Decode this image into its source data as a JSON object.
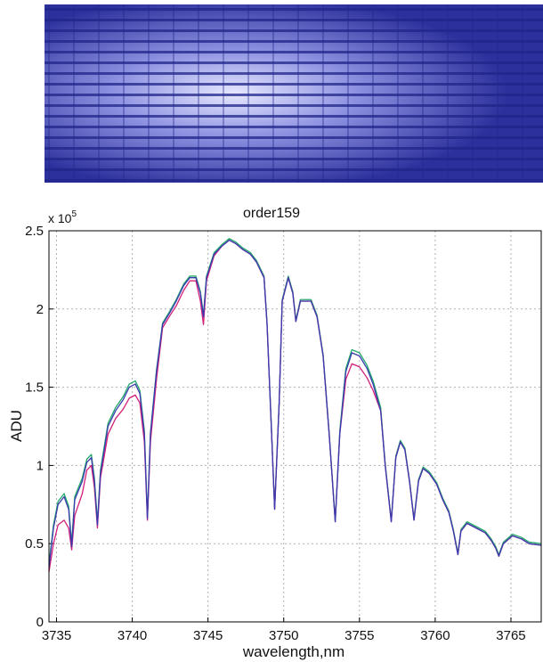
{
  "chart_data": {
    "type": "line",
    "title": "order159",
    "xlabel": "wavelength,nm",
    "ylabel": "ADU",
    "y_multiplier": {
      "base": "x 10",
      "exponent": "5"
    },
    "x": [
      3734.5,
      3734.8,
      3735.1,
      3735.5,
      3735.8,
      3736.0,
      3736.2,
      3736.7,
      3737.0,
      3737.3,
      3737.5,
      3737.7,
      3737.9,
      3738.4,
      3738.9,
      3739.4,
      3739.8,
      3740.2,
      3740.5,
      3740.8,
      3741.0,
      3741.2,
      3741.6,
      3742.0,
      3742.5,
      3742.9,
      3743.4,
      3743.8,
      3744.2,
      3744.5,
      3744.7,
      3744.9,
      3745.4,
      3745.9,
      3746.4,
      3746.8,
      3747.3,
      3747.8,
      3748.2,
      3748.7,
      3748.9,
      3749.2,
      3749.4,
      3749.7,
      3749.9,
      3750.3,
      3750.6,
      3750.8,
      3751.1,
      3751.4,
      3751.8,
      3752.2,
      3752.6,
      3753.0,
      3753.4,
      3753.7,
      3754.1,
      3754.5,
      3755.0,
      3755.5,
      3755.9,
      3756.4,
      3756.7,
      3757.1,
      3757.4,
      3757.7,
      3758.0,
      3758.3,
      3758.6,
      3758.9,
      3759.2,
      3759.6,
      3760.1,
      3760.5,
      3760.9,
      3761.2,
      3761.5,
      3761.7,
      3762.1,
      3762.7,
      3763.3,
      3763.7,
      3764.0,
      3764.2,
      3764.5,
      3765.1,
      3765.7,
      3766.2,
      3767.0
    ],
    "series": [
      {
        "color": "#22a86a",
        "values": [
          0.37,
          0.62,
          0.77,
          0.82,
          0.74,
          0.5,
          0.8,
          0.92,
          1.04,
          1.07,
          0.92,
          0.64,
          0.97,
          1.27,
          1.37,
          1.44,
          1.52,
          1.54,
          1.48,
          1.22,
          0.67,
          1.21,
          1.61,
          1.91,
          1.99,
          2.06,
          2.16,
          2.21,
          2.21,
          2.11,
          1.96,
          2.21,
          2.36,
          2.41,
          2.45,
          2.43,
          2.39,
          2.36,
          2.31,
          2.21,
          1.91,
          1.21,
          0.73,
          1.41,
          2.06,
          2.21,
          2.11,
          1.93,
          2.06,
          2.06,
          2.06,
          1.96,
          1.71,
          1.21,
          0.65,
          1.22,
          1.62,
          1.74,
          1.72,
          1.64,
          1.54,
          1.37,
          1.01,
          0.65,
          1.06,
          1.16,
          1.11,
          0.91,
          0.66,
          0.91,
          0.99,
          0.96,
          0.89,
          0.79,
          0.71,
          0.59,
          0.44,
          0.59,
          0.64,
          0.61,
          0.58,
          0.53,
          0.48,
          0.43,
          0.51,
          0.56,
          0.54,
          0.51,
          0.5
        ]
      },
      {
        "color": "#d0207a",
        "values": [
          0.32,
          0.5,
          0.62,
          0.65,
          0.6,
          0.46,
          0.68,
          0.82,
          0.97,
          1.0,
          0.86,
          0.6,
          0.92,
          1.2,
          1.3,
          1.36,
          1.43,
          1.45,
          1.4,
          1.15,
          0.65,
          1.15,
          1.55,
          1.88,
          1.96,
          2.02,
          2.12,
          2.18,
          2.18,
          2.05,
          1.9,
          2.18,
          2.34,
          2.4,
          2.44,
          2.42,
          2.38,
          2.35,
          2.3,
          2.2,
          1.9,
          1.2,
          0.72,
          1.4,
          2.05,
          2.2,
          2.1,
          1.92,
          2.05,
          2.05,
          2.05,
          1.95,
          1.7,
          1.2,
          0.64,
          1.2,
          1.55,
          1.65,
          1.63,
          1.56,
          1.48,
          1.35,
          1.0,
          0.64,
          1.05,
          1.15,
          1.1,
          0.9,
          0.65,
          0.9,
          0.98,
          0.95,
          0.88,
          0.78,
          0.7,
          0.58,
          0.43,
          0.58,
          0.63,
          0.6,
          0.57,
          0.52,
          0.47,
          0.42,
          0.5,
          0.55,
          0.53,
          0.5,
          0.49
        ]
      },
      {
        "color": "#3a3ab0",
        "values": [
          0.35,
          0.6,
          0.75,
          0.8,
          0.72,
          0.48,
          0.78,
          0.9,
          1.02,
          1.05,
          0.9,
          0.62,
          0.95,
          1.25,
          1.35,
          1.42,
          1.5,
          1.52,
          1.46,
          1.2,
          0.66,
          1.2,
          1.6,
          1.9,
          1.98,
          2.05,
          2.15,
          2.2,
          2.2,
          2.1,
          1.95,
          2.2,
          2.35,
          2.4,
          2.44,
          2.42,
          2.38,
          2.35,
          2.3,
          2.2,
          1.9,
          1.2,
          0.72,
          1.4,
          2.05,
          2.2,
          2.1,
          1.92,
          2.05,
          2.05,
          2.05,
          1.95,
          1.7,
          1.2,
          0.64,
          1.2,
          1.6,
          1.72,
          1.7,
          1.62,
          1.52,
          1.35,
          1.0,
          0.64,
          1.05,
          1.15,
          1.1,
          0.9,
          0.65,
          0.9,
          0.98,
          0.95,
          0.88,
          0.78,
          0.7,
          0.58,
          0.43,
          0.58,
          0.63,
          0.6,
          0.57,
          0.52,
          0.47,
          0.42,
          0.5,
          0.55,
          0.53,
          0.5,
          0.49
        ]
      }
    ],
    "xlim": [
      3734.5,
      3767
    ],
    "xticks": [
      3735,
      3740,
      3745,
      3750,
      3755,
      3760,
      3765
    ],
    "ylim": [
      0,
      2.5
    ],
    "yticks": [
      0,
      0.5,
      1,
      1.5,
      2,
      2.5
    ],
    "grid": true
  }
}
